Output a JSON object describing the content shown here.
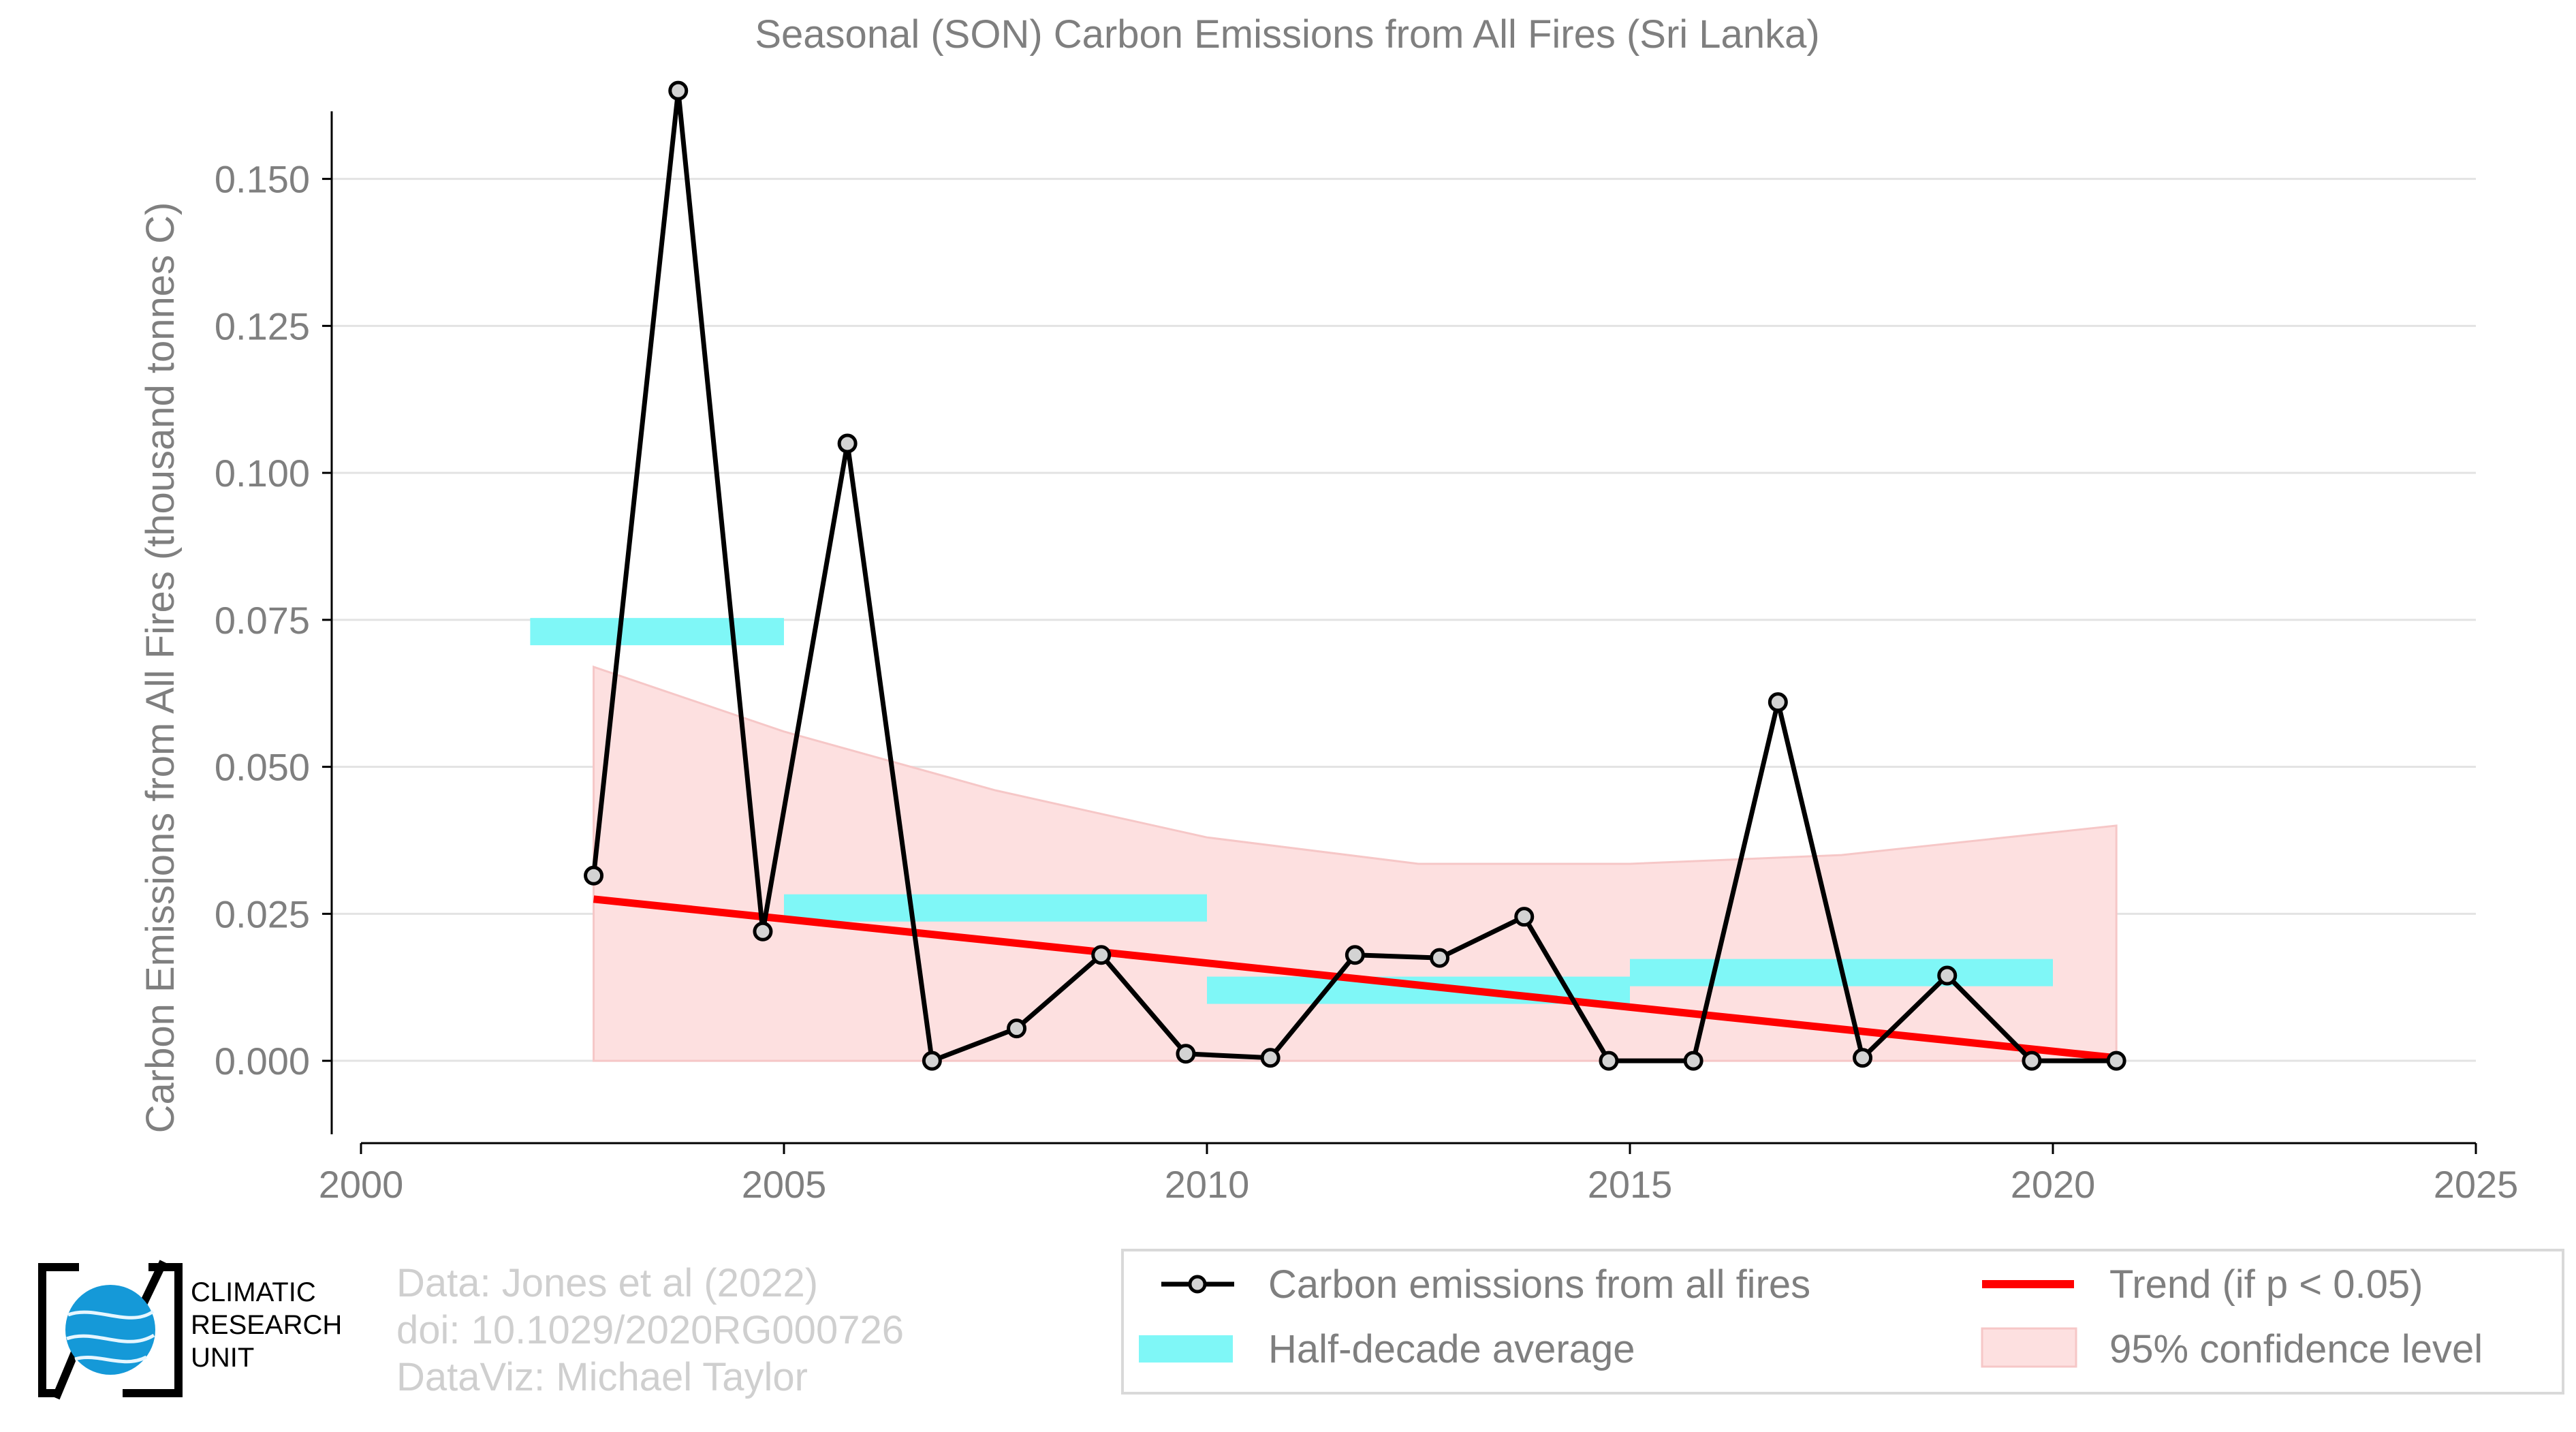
{
  "chart_data": {
    "type": "line",
    "title": "Seasonal (SON) Carbon Emissions from All Fires (Sri Lanka)",
    "xlabel": "",
    "ylabel": "Carbon Emissions from All Fires (thousand tonnes C)",
    "xlim": [
      2000,
      2025
    ],
    "ylim": [
      -0.0125,
      0.17
    ],
    "x_ticks": [
      "2000",
      "2005",
      "2010",
      "2015",
      "2020",
      "2025"
    ],
    "y_ticks": [
      "0.000",
      "0.025",
      "0.050",
      "0.075",
      "0.100",
      "0.125",
      "0.150"
    ],
    "grid": "horizontal",
    "legend_position": "bottom",
    "series": [
      {
        "name": "Carbon emissions from all fires",
        "color": "#000000",
        "marker": "circle",
        "x": [
          2002.75,
          2003.75,
          2004.75,
          2005.75,
          2006.75,
          2007.75,
          2008.75,
          2009.75,
          2010.75,
          2011.75,
          2012.75,
          2013.75,
          2014.75,
          2015.75,
          2016.75,
          2017.75,
          2018.75,
          2019.75,
          2020.75
        ],
        "y": [
          0.0315,
          0.165,
          0.022,
          0.105,
          0.0,
          0.0055,
          0.018,
          0.0012,
          0.0005,
          0.018,
          0.0175,
          0.0245,
          0.0,
          0.0,
          0.061,
          0.0005,
          0.0145,
          0.0,
          0.0
        ]
      },
      {
        "name": "Half-decade average",
        "color": "#7ff7f7",
        "type": "segments",
        "segments": [
          {
            "x_start": 2002,
            "x_end": 2005,
            "y": 0.073
          },
          {
            "x_start": 2005,
            "x_end": 2010,
            "y": 0.026
          },
          {
            "x_start": 2010,
            "x_end": 2015,
            "y": 0.012
          },
          {
            "x_start": 2015,
            "x_end": 2020,
            "y": 0.015
          }
        ]
      },
      {
        "name": "Trend (if p < 0.05)",
        "color": "#ff0000",
        "x": [
          2002.75,
          2020.75
        ],
        "y": [
          0.0275,
          0.0005
        ]
      },
      {
        "name": "95% confidence level",
        "color": "#fde0e0",
        "type": "band",
        "x": [
          2002.75,
          2005,
          2007.5,
          2010,
          2012.5,
          2015,
          2017.5,
          2020.75
        ],
        "upper": [
          0.067,
          0.056,
          0.046,
          0.038,
          0.0335,
          0.0335,
          0.035,
          0.04
        ],
        "lower": [
          0.0,
          0.0,
          0.0,
          0.0,
          0.0,
          0.0,
          0.0,
          0.0
        ]
      }
    ]
  },
  "legend": {
    "items": [
      "Carbon emissions from all fires",
      "Trend (if p < 0.05)",
      "Half-decade average",
      "95% confidence level"
    ]
  },
  "credits": {
    "line1": "Data: Jones et al (2022)",
    "line2": "doi: 10.1029/2020RG000726",
    "line3": "DataViz: Michael Taylor"
  },
  "logo": {
    "line1": "CLIMATIC",
    "line2": "RESEARCH",
    "line3": "UNIT"
  }
}
